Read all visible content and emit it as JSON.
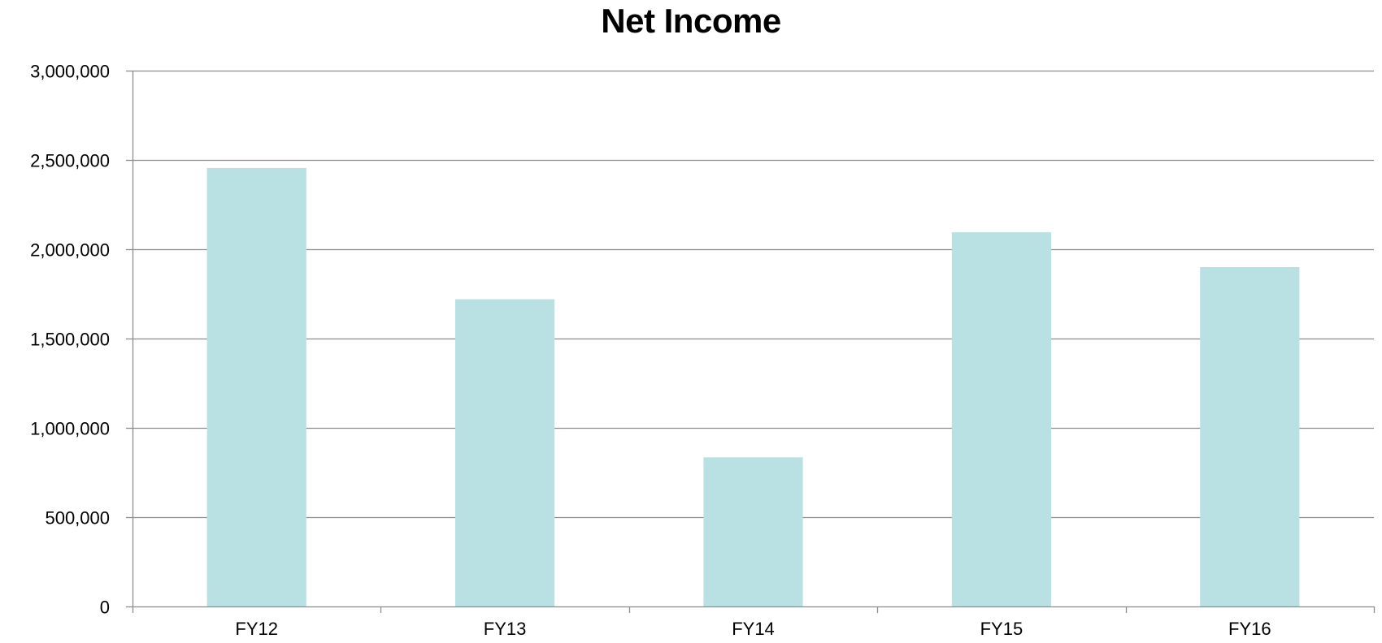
{
  "chart_data": {
    "type": "bar",
    "title": "Net Income",
    "xlabel": "",
    "ylabel": "",
    "categories": [
      "FY12",
      "FY13",
      "FY14",
      "FY15",
      "FY16"
    ],
    "values": [
      2455000,
      1720000,
      835000,
      2095000,
      1900000
    ],
    "ylim": [
      0,
      3000000
    ],
    "yticks": [
      0,
      500000,
      1000000,
      1500000,
      2000000,
      2500000,
      3000000
    ],
    "ytick_labels": [
      "0",
      "500,000",
      "1,000,000",
      "1,500,000",
      "2,000,000",
      "2,500,000",
      "3,000,000"
    ],
    "grid": true,
    "legend": "none",
    "colors": {
      "bar": "#b9e0e3",
      "grid": "#8c8c8c",
      "axis": "#8c8c8c"
    }
  }
}
